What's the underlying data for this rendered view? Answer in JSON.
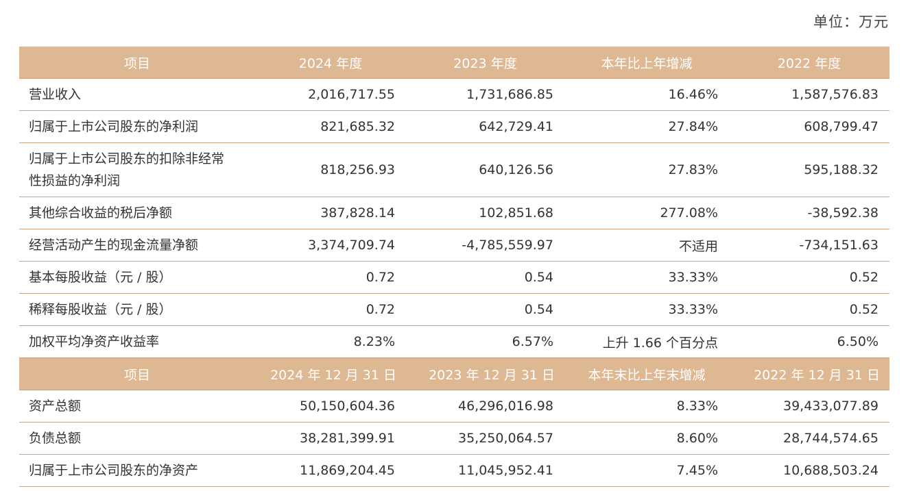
{
  "unit": "单位：万元",
  "header1": {
    "item": "项目",
    "y2024": "2024 年度",
    "y2023": "2023 年度",
    "change": "本年比上年增减",
    "y2022": "2022 年度"
  },
  "rows1": [
    {
      "label": "营业收入",
      "v2024": "2,016,717.55",
      "v2023": "1,731,686.85",
      "change": "16.46%",
      "v2022": "1,587,576.83"
    },
    {
      "label": "归属于上市公司股东的净利润",
      "v2024": "821,685.32",
      "v2023": "642,729.41",
      "change": "27.84%",
      "v2022": "608,799.47"
    },
    {
      "label1": "归属于上市公司股东的扣除非经常",
      "label2": "性损益的净利润",
      "v2024": "818,256.93",
      "v2023": "640,126.56",
      "change": "27.83%",
      "v2022": "595,188.32"
    },
    {
      "label": "其他综合收益的税后净额",
      "v2024": "387,828.14",
      "v2023": "102,851.68",
      "change": "277.08%",
      "v2022": "-38,592.38"
    },
    {
      "label": "经营活动产生的现金流量净额",
      "v2024": "3,374,709.74",
      "v2023": "-4,785,559.97",
      "change": "不适用",
      "v2022": "-734,151.63"
    },
    {
      "label": "基本每股收益（元 / 股）",
      "v2024": "0.72",
      "v2023": "0.54",
      "change": "33.33%",
      "v2022": "0.52"
    },
    {
      "label": "稀释每股收益（元 / 股）",
      "v2024": "0.72",
      "v2023": "0.54",
      "change": "33.33%",
      "v2022": "0.52"
    },
    {
      "label": "加权平均净资产收益率",
      "v2024": "8.23%",
      "v2023": "6.57%",
      "change": "上升 1.66 个百分点",
      "v2022": "6.50%"
    }
  ],
  "header2": {
    "item": "项目",
    "d2024": "2024 年 12 月 31 日",
    "d2023": "2023 年 12 月 31 日",
    "change": "本年末比上年末增减",
    "d2022": "2022 年 12 月 31 日"
  },
  "rows2": [
    {
      "label": "资产总额",
      "v2024": "50,150,604.36",
      "v2023": "46,296,016.98",
      "change": "8.33%",
      "v2022": "39,433,077.89"
    },
    {
      "label": "负债总额",
      "v2024": "38,281,399.91",
      "v2023": "35,250,064.57",
      "change": "8.60%",
      "v2022": "28,744,574.65"
    },
    {
      "label": "归属于上市公司股东的净资产",
      "v2024": "11,869,204.45",
      "v2023": "11,045,952.41",
      "change": "7.45%",
      "v2022": "10,688,503.24"
    }
  ],
  "colors": {
    "header_bg": "#deb793",
    "header_text": "#ffffff",
    "row_border": "#c9a583",
    "body_text": "#333333"
  }
}
